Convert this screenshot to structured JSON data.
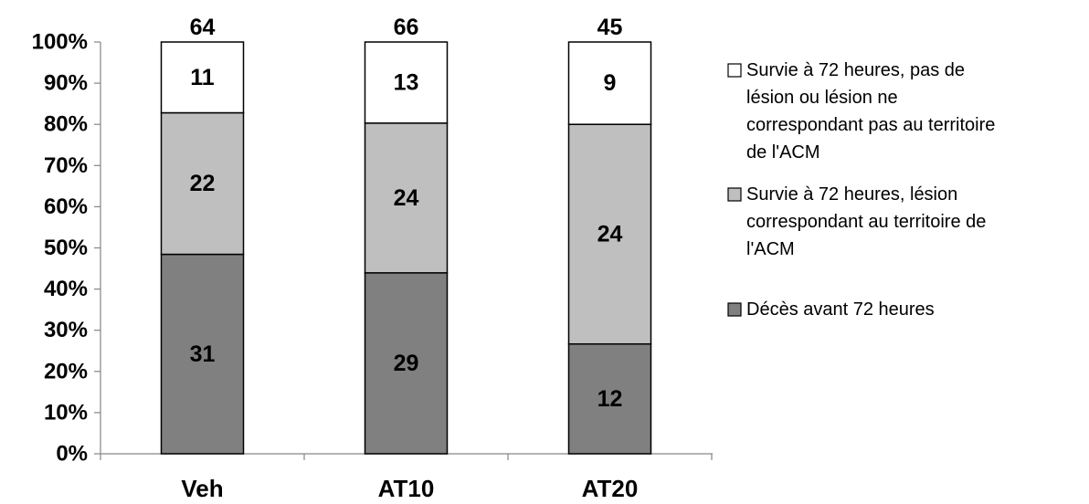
{
  "chart_data": {
    "type": "bar",
    "stacked": true,
    "percent_stacked": true,
    "categories": [
      "Veh",
      "AT10",
      "AT20"
    ],
    "series": [
      {
        "name": "Décès avant 72 heures",
        "values": [
          31,
          29,
          12
        ],
        "color": "#808080",
        "legend_lines": [
          "Décès avant 72 heures"
        ]
      },
      {
        "name": "Survie à 72 heures, lésion correspondant au territoire de l'ACM",
        "values": [
          22,
          24,
          24
        ],
        "color": "#bfbfbf",
        "legend_lines": [
          "Survie à 72 heures, lésion",
          "correspondant au territoire de",
          "l'ACM"
        ]
      },
      {
        "name": "Survie à 72 heures, pas de lésion ou lésion ne correspondant pas au territoire de l'ACM",
        "values": [
          11,
          13,
          9
        ],
        "color": "#ffffff",
        "legend_lines": [
          "Survie à 72 heures, pas de",
          "lésion ou lésion ne",
          "correspondant pas au territoire",
          "de l'ACM"
        ]
      }
    ],
    "totals": [
      64,
      66,
      45
    ],
    "title": "",
    "xlabel": "",
    "ylabel": "",
    "ylim": [
      0,
      100
    ],
    "yticks": [
      "0%",
      "10%",
      "20%",
      "30%",
      "40%",
      "50%",
      "60%",
      "70%",
      "80%",
      "90%",
      "100%"
    ],
    "grid": false,
    "legend_position": "right"
  }
}
